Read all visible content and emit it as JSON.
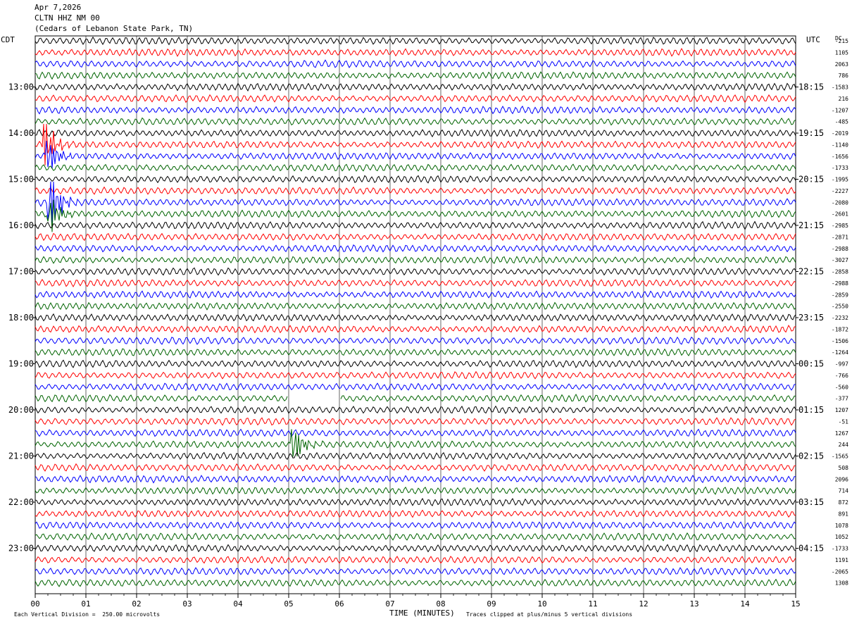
{
  "header": {
    "date": "Apr 7,2026",
    "station": "CLTN HHZ NM 00",
    "location": "(Cedars of Lebanon State Park, TN)"
  },
  "axis": {
    "left_timezone": "CDT",
    "right_timezone": "UTC",
    "right_corner_label": "DC",
    "x_label": "TIME (MINUTES)",
    "footer_left": "Each Vertical Division =  250.00 microvolts",
    "footer_right": "Traces clipped at plus/minus 5 vertical divisions"
  },
  "colors": {
    "trace_cycle": [
      "#000000",
      "#ff0000",
      "#0000ff",
      "#006400"
    ],
    "grid": "#000000",
    "background": "#ffffff"
  },
  "chart_data": {
    "type": "line",
    "x_ticks": [
      "00",
      "01",
      "02",
      "03",
      "04",
      "05",
      "06",
      "07",
      "08",
      "09",
      "10",
      "11",
      "12",
      "13",
      "14",
      "15"
    ],
    "xlim": [
      0,
      15
    ],
    "left_hour_labels": [
      "13:00",
      "14:00",
      "15:00",
      "16:00",
      "17:00",
      "18:00",
      "19:00",
      "20:00",
      "21:00",
      "22:00",
      "23:00"
    ],
    "right_hour_labels": [
      "18:15",
      "19:15",
      "20:15",
      "21:15",
      "22:15",
      "23:15",
      "00:15",
      "01:15",
      "02:15",
      "03:15",
      "04:15"
    ],
    "rows_per_hour": 4,
    "dc_offsets": [
      "-215",
      "1105",
      "2063",
      "786",
      "-1583",
      "216",
      "-1207",
      "-485",
      "-2019",
      "-1140",
      "-1656",
      "-1733",
      "-1995",
      "-2227",
      "-2080",
      "-2601",
      "-2985",
      "-2871",
      "-2988",
      "-3027",
      "-2858",
      "-2988",
      "-2859",
      "-2550",
      "-2232",
      "-1872",
      "-1506",
      "-1264",
      "-997",
      "-766",
      "-560",
      "-377",
      "1207",
      "-51",
      "1267",
      "244",
      "-1565",
      "508",
      "2096",
      "714",
      "872",
      "891",
      "1078",
      "1052",
      "-1733",
      "1191",
      "-2065",
      "1308"
    ],
    "gap": {
      "row": 31,
      "start_min": 5.0,
      "end_min": 6.0
    },
    "events": [
      {
        "row": 9,
        "minute": 0.2,
        "amplitude": 4
      },
      {
        "row": 10,
        "minute": 0.25,
        "amplitude": 3
      },
      {
        "row": 14,
        "minute": 0.3,
        "amplitude": 5
      },
      {
        "row": 15,
        "minute": 0.3,
        "amplitude": 3
      },
      {
        "row": 35,
        "minute": 5.1,
        "amplitude": 3
      }
    ]
  }
}
